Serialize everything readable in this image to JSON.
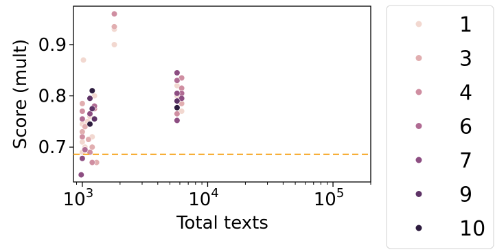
{
  "chart_data": {
    "type": "scatter",
    "title": "",
    "xlabel": "Total texts",
    "ylabel": "Score (mult)",
    "x_scale": "log",
    "xlim": [
      850,
      200000
    ],
    "ylim": [
      0.632,
      0.975
    ],
    "x_ticks": [
      {
        "value": 1000,
        "base": "10",
        "exp": "3"
      },
      {
        "value": 10000,
        "base": "10",
        "exp": "4"
      },
      {
        "value": 100000,
        "base": "10",
        "exp": "5"
      }
    ],
    "y_ticks": [
      {
        "value": 0.7,
        "label": "0.7"
      },
      {
        "value": 0.8,
        "label": "0.8"
      },
      {
        "value": 0.9,
        "label": "0.9"
      }
    ],
    "reference_line": {
      "y": 0.686,
      "color": "#f5a21a",
      "style": "dashed"
    },
    "grid": false,
    "legend_placement": "outside right",
    "series": [
      {
        "name": "1",
        "color": "#f2d8d0",
        "points": [
          [
            1000,
            0.69
          ],
          [
            1000,
            0.71
          ],
          [
            1000,
            0.745
          ],
          [
            1020,
            0.87
          ],
          [
            1050,
            0.7
          ],
          [
            1100,
            0.75
          ],
          [
            1150,
            0.76
          ],
          [
            1200,
            0.72
          ],
          [
            1250,
            0.8
          ],
          [
            1800,
            0.93
          ],
          [
            1800,
            0.9
          ],
          [
            5700,
            0.8
          ],
          [
            5700,
            0.82
          ],
          [
            6200,
            0.77
          ]
        ]
      },
      {
        "name": "3",
        "color": "#e1aeb0",
        "points": [
          [
            1000,
            0.73
          ],
          [
            1000,
            0.785
          ],
          [
            1050,
            0.74
          ],
          [
            1120,
            0.715
          ],
          [
            1200,
            0.7
          ],
          [
            1300,
            0.67
          ],
          [
            1800,
            0.935
          ],
          [
            5700,
            0.79
          ],
          [
            6200,
            0.785
          ]
        ]
      },
      {
        "name": "4",
        "color": "#cf8ea1",
        "points": [
          [
            1000,
            0.77
          ],
          [
            1000,
            0.72
          ],
          [
            1150,
            0.69
          ],
          [
            1200,
            0.67
          ],
          [
            1250,
            0.775
          ],
          [
            1800,
            0.96
          ],
          [
            5700,
            0.765
          ],
          [
            6200,
            0.815
          ],
          [
            6200,
            0.835
          ]
        ]
      },
      {
        "name": "6",
        "color": "#b06b93",
        "points": [
          [
            1000,
            0.755
          ],
          [
            1050,
            0.695
          ],
          [
            1150,
            0.745
          ],
          [
            1250,
            0.78
          ],
          [
            5700,
            0.83
          ],
          [
            6200,
            0.805
          ]
        ]
      },
      {
        "name": "7",
        "color": "#8d4e82",
        "points": [
          [
            980,
            0.646
          ],
          [
            1000,
            0.678
          ],
          [
            1150,
            0.765
          ],
          [
            5700,
            0.845
          ],
          [
            5700,
            0.805
          ],
          [
            6200,
            0.795
          ],
          [
            5700,
            0.752
          ]
        ]
      },
      {
        "name": "9",
        "color": "#5e3366",
        "points": [
          [
            1150,
            0.795
          ],
          [
            1200,
            0.775
          ],
          [
            1250,
            0.755
          ],
          [
            5700,
            0.79
          ]
        ]
      },
      {
        "name": "10",
        "color": "#2d1c3e",
        "points": [
          [
            1150,
            0.745
          ],
          [
            1200,
            0.81
          ],
          [
            5700,
            0.777
          ]
        ]
      }
    ]
  }
}
